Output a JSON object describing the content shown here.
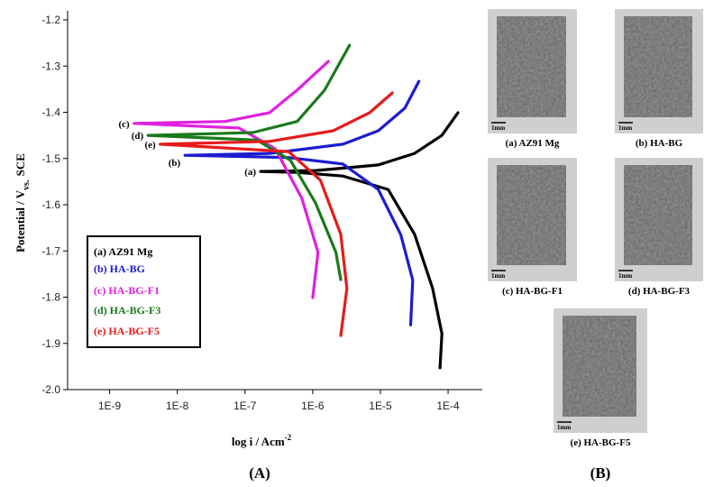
{
  "chart_data": {
    "type": "line",
    "xscale": "log",
    "xlabel": "log i / Acm",
    "xlabel_sup": "-2",
    "ylabel": "Potential / V",
    "ylabel_sub": "vs.",
    "ylabel_suffix": "SCE",
    "panel_label": "(A)",
    "xlim": [
      2.4e-10,
      0.00032
    ],
    "xticks": [
      {
        "value": 1e-09,
        "label": "1E-9"
      },
      {
        "value": 1e-08,
        "label": "1E-8"
      },
      {
        "value": 1e-07,
        "label": "1E-7"
      },
      {
        "value": 1e-06,
        "label": "1E-6"
      },
      {
        "value": 1e-05,
        "label": "1E-5"
      },
      {
        "value": 0.0001,
        "label": "1E-4"
      }
    ],
    "ylim": [
      -2.0,
      -1.2
    ],
    "yticks": [
      -1.2,
      -1.3,
      -1.4,
      -1.5,
      -1.6,
      -1.7,
      -1.8,
      -1.9,
      {
        "value": -2.0,
        "label": "-2.0"
      }
    ],
    "curve_labels": [
      "(a)",
      "(b)",
      "(c)",
      "(d)",
      "(e)"
    ],
    "series": [
      {
        "name": "(a) AZ91 Mg",
        "color": "#000000",
        "x": [
          7.6e-05,
          8.1e-05,
          5.9e-05,
          3.2e-05,
          1.3e-05,
          2.8e-06,
          5.9e-07,
          1.7e-07,
          1.1e-06,
          9.3e-06,
          3.2e-05,
          8.1e-05,
          0.00014
        ],
        "values": [
          -1.953,
          -1.879,
          -1.781,
          -1.664,
          -1.567,
          -1.538,
          -1.53,
          -1.528,
          -1.526,
          -1.514,
          -1.489,
          -1.45,
          -1.401
        ]
      },
      {
        "name": "(b) HA-BG",
        "color": "#1c1cd0",
        "x": [
          2.8e-05,
          3e-05,
          2e-05,
          9.3e-06,
          2.8e-06,
          4.4e-07,
          1.3e-08,
          2.3e-07,
          2.8e-06,
          9.3e-06,
          2.3e-05,
          3.7e-05
        ],
        "values": [
          -1.86,
          -1.763,
          -1.665,
          -1.567,
          -1.512,
          -1.498,
          -1.493,
          -1.489,
          -1.469,
          -1.44,
          -1.391,
          -1.333
        ]
      },
      {
        "name": "(c) HA-BG-F1",
        "color": "#e020e0",
        "x": [
          1e-06,
          1.2e-06,
          6.9e-07,
          2.8e-07,
          8.1e-08,
          2.3e-09,
          5.1e-08,
          2.3e-07,
          5.9e-07,
          1.7e-06
        ],
        "values": [
          -1.801,
          -1.703,
          -1.586,
          -1.479,
          -1.434,
          -1.424,
          -1.42,
          -1.401,
          -1.352,
          -1.29
        ]
      },
      {
        "name": "(d) HA-BG-F3",
        "color": "#1a7a1a",
        "x": [
          2.6e-06,
          2.2e-06,
          1.1e-06,
          4.7e-07,
          1.5e-07,
          3.7e-09,
          1.3e-07,
          5.9e-07,
          1.5e-06,
          3.5e-06
        ],
        "values": [
          -1.762,
          -1.703,
          -1.596,
          -1.504,
          -1.46,
          -1.45,
          -1.444,
          -1.42,
          -1.352,
          -1.255
        ]
      },
      {
        "name": "(e) HA-BG-F5",
        "color": "#e81a1a",
        "x": [
          2.6e-06,
          3.2e-06,
          2.6e-06,
          1.3e-06,
          4.4e-07,
          5.6e-09,
          2.3e-07,
          2e-06,
          6.9e-06,
          1.5e-05
        ],
        "values": [
          -1.883,
          -1.781,
          -1.664,
          -1.547,
          -1.485,
          -1.469,
          -1.463,
          -1.44,
          -1.401,
          -1.358
        ]
      }
    ]
  },
  "panel_b": {
    "panel_label": "(B)",
    "images": [
      {
        "caption": "(a) AZ91 Mg",
        "scale": "1mm"
      },
      {
        "caption": "(b) HA-BG",
        "scale": "1mm"
      },
      {
        "caption": "(c) HA-BG-F1",
        "scale": "1mm"
      },
      {
        "caption": "(d) HA-BG-F3",
        "scale": "1mm"
      },
      {
        "caption": "(e) HA-BG-F5",
        "scale": "1mm"
      }
    ]
  }
}
